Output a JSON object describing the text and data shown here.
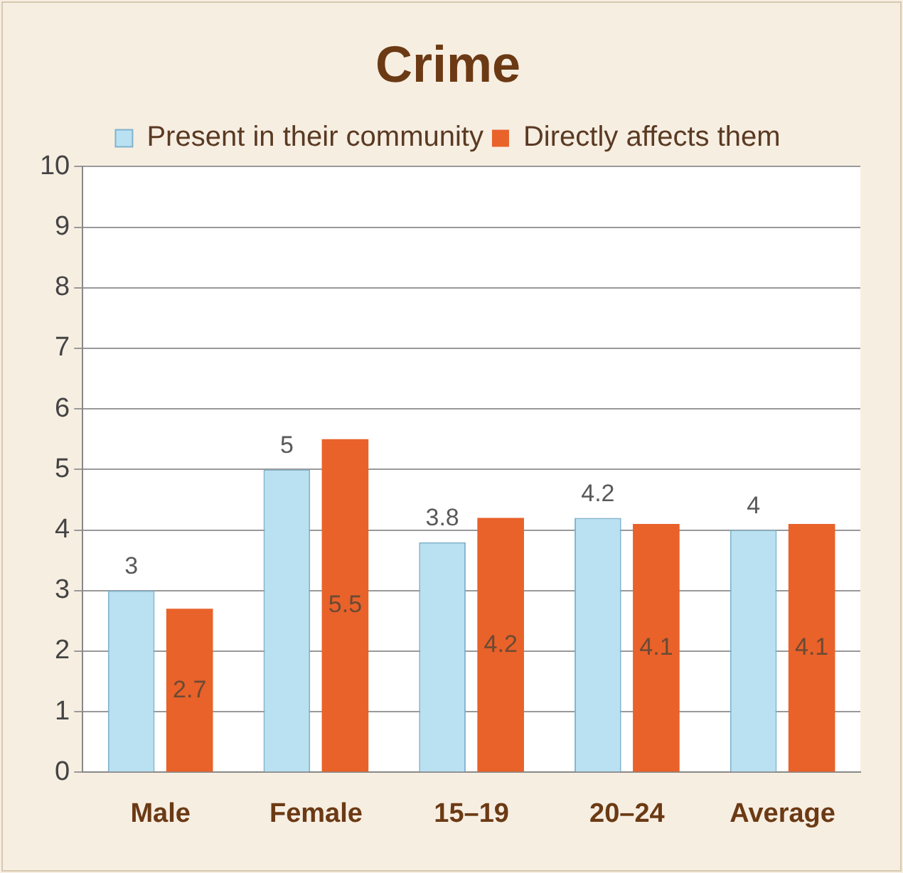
{
  "chart_data": {
    "type": "bar",
    "title": "Crime",
    "categories": [
      "Male",
      "Female",
      "15–19",
      "20–24",
      "Average"
    ],
    "series": [
      {
        "name": "Present in their community",
        "color": "#b9e1f2",
        "values": [
          3,
          5,
          3.8,
          4.2,
          4
        ]
      },
      {
        "name": "Directly affects them",
        "color": "#e8622a",
        "values": [
          2.7,
          5.5,
          4.2,
          4.1,
          4.1
        ]
      }
    ],
    "ylim": [
      0,
      10
    ],
    "yticks": [
      0,
      1,
      2,
      3,
      4,
      5,
      6,
      7,
      8,
      9,
      10
    ],
    "grid": "y",
    "legend": "top",
    "data_labels": true
  }
}
